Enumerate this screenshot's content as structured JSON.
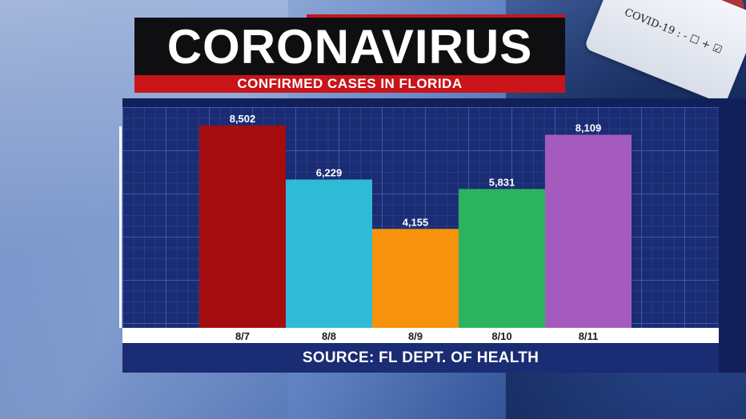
{
  "header": {
    "title": "CORONAVIRUS",
    "subtitle": "CONFIRMED CASES IN FLORIDA"
  },
  "background": {
    "tube_label": "COVID-19 : - ☐ + ☑"
  },
  "footer": {
    "source": "SOURCE: FL DEPT. OF HEALTH"
  },
  "chart_data": {
    "type": "bar",
    "categories": [
      "8/7",
      "8/8",
      "8/9",
      "8/10",
      "8/11"
    ],
    "values": [
      8502,
      6229,
      4155,
      5831,
      8109
    ],
    "value_labels": [
      "8,502",
      "6,229",
      "4,155",
      "5,831",
      "8,109"
    ],
    "colors": [
      "#a50c10",
      "#2fbad6",
      "#f7920c",
      "#2bb35f",
      "#a55bbd"
    ],
    "ylim": [
      0,
      9000
    ],
    "grid": true,
    "legend": "none"
  }
}
